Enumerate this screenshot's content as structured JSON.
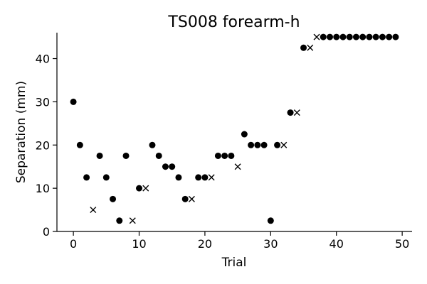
{
  "chart_data": {
    "type": "scatter",
    "title": "TS008 forearm-h",
    "xlabel": "Trial",
    "ylabel": "Separation (mm)",
    "xlim": [
      -2.5,
      51.5
    ],
    "ylim": [
      0,
      46
    ],
    "xticks": [
      0,
      10,
      20,
      30,
      40,
      50
    ],
    "yticks": [
      0,
      10,
      20,
      30,
      40
    ],
    "grid": false,
    "marker_color": "#000000",
    "series": [
      {
        "marker": "circle",
        "points": [
          [
            0,
            30
          ],
          [
            1,
            20
          ],
          [
            2,
            12.5
          ],
          [
            4,
            17.5
          ],
          [
            5,
            12.5
          ],
          [
            6,
            7.5
          ],
          [
            7,
            2.5
          ],
          [
            8,
            17.5
          ],
          [
            10,
            10
          ],
          [
            12,
            20
          ],
          [
            13,
            17.5
          ],
          [
            14,
            15
          ],
          [
            15,
            15
          ],
          [
            16,
            12.5
          ],
          [
            17,
            7.5
          ],
          [
            19,
            12.5
          ],
          [
            20,
            12.5
          ],
          [
            22,
            17.5
          ],
          [
            23,
            17.5
          ],
          [
            24,
            17.5
          ],
          [
            26,
            22.5
          ],
          [
            27,
            20
          ],
          [
            28,
            20
          ],
          [
            29,
            20
          ],
          [
            30,
            2.5
          ],
          [
            31,
            20
          ],
          [
            33,
            27.5
          ],
          [
            35,
            42.5
          ],
          [
            38,
            45
          ],
          [
            39,
            45
          ],
          [
            40,
            45
          ],
          [
            41,
            45
          ],
          [
            42,
            45
          ],
          [
            43,
            45
          ],
          [
            44,
            45
          ],
          [
            45,
            45
          ],
          [
            46,
            45
          ],
          [
            47,
            45
          ],
          [
            48,
            45
          ],
          [
            49,
            45
          ]
        ]
      },
      {
        "marker": "x",
        "points": [
          [
            3,
            5
          ],
          [
            9,
            2.5
          ],
          [
            11,
            10
          ],
          [
            18,
            7.5
          ],
          [
            21,
            12.5
          ],
          [
            25,
            15
          ],
          [
            32,
            20
          ],
          [
            34,
            27.5
          ],
          [
            36,
            42.5
          ],
          [
            37,
            45
          ]
        ]
      }
    ]
  }
}
